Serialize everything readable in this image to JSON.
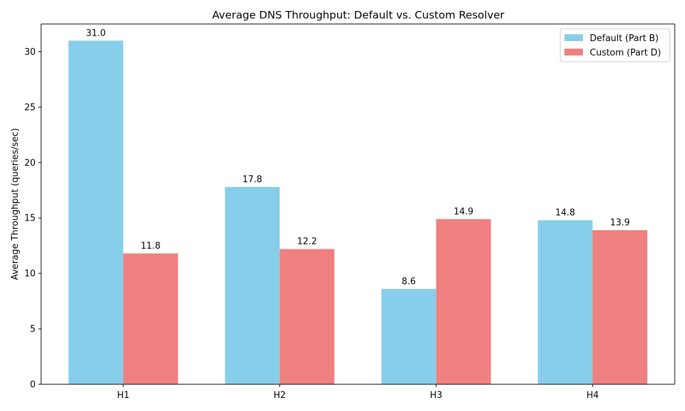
{
  "chart_data": {
    "type": "bar",
    "title": "Average DNS Throughput: Default vs. Custom Resolver",
    "xlabel": "",
    "ylabel": "Average Throughput (queries/sec)",
    "categories": [
      "H1",
      "H2",
      "H3",
      "H4"
    ],
    "series": [
      {
        "name": "Default (Part B)",
        "color": "#87CEEB",
        "values": [
          31.0,
          17.8,
          8.6,
          14.8
        ],
        "labels": [
          "31.0",
          "17.8",
          "8.6",
          "14.8"
        ]
      },
      {
        "name": "Custom (Part D)",
        "color": "#F08080",
        "values": [
          11.8,
          12.2,
          14.9,
          13.9
        ],
        "labels": [
          "11.8",
          "12.2",
          "14.9",
          "13.9"
        ]
      }
    ],
    "ylim": [
      0,
      32.5
    ],
    "yticks": [
      0,
      5,
      10,
      15,
      20,
      25,
      30
    ],
    "ytick_labels": [
      "0",
      "5",
      "10",
      "15",
      "20",
      "25",
      "30"
    ],
    "grid": false,
    "legend": "top-right"
  }
}
